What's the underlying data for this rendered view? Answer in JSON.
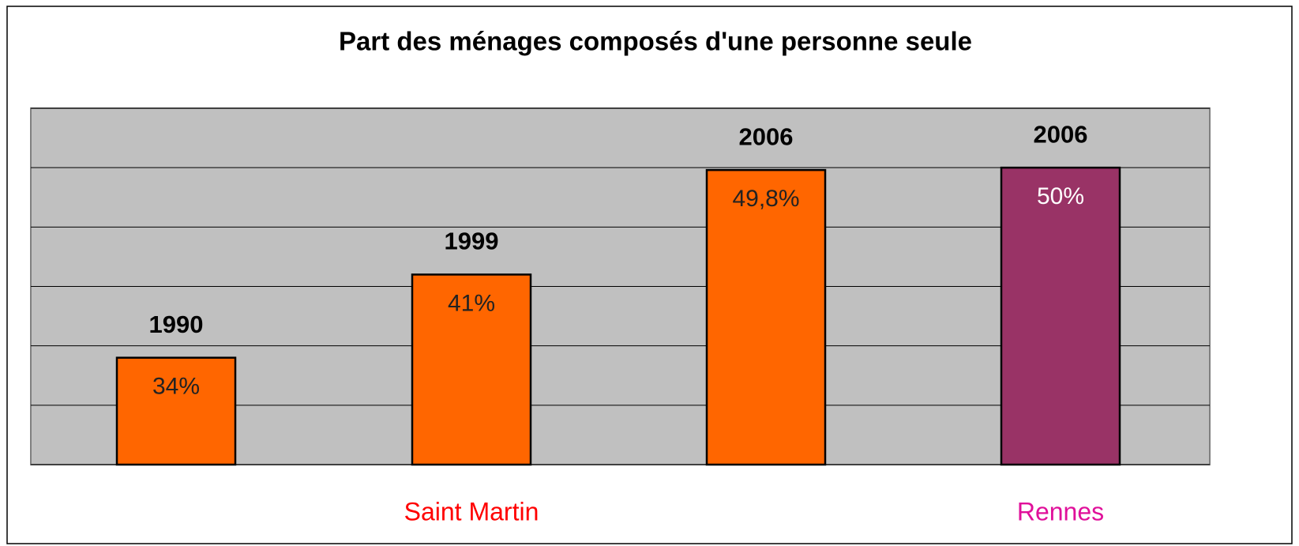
{
  "chart_data": {
    "type": "bar",
    "title": "Part des ménages composés d'une personne seule",
    "categories": [
      "1990",
      "1999",
      "2006",
      "2006"
    ],
    "values": [
      34,
      41,
      49.8,
      50
    ],
    "value_labels": [
      "34%",
      "41%",
      "49,8%",
      "50%"
    ],
    "colors": [
      "#ff6600",
      "#ff6600",
      "#ff6600",
      "#993366"
    ],
    "value_label_colors": [
      "#222222",
      "#222222",
      "#222222",
      "#ffffff"
    ],
    "group_labels": [
      "Saint Martin",
      "Rennes"
    ],
    "group_colors": [
      "#ff0000",
      "#e0109a"
    ],
    "ylim": [
      25,
      55
    ],
    "yticks": [
      25,
      30,
      35,
      40,
      45,
      50,
      55
    ],
    "grid": true
  }
}
